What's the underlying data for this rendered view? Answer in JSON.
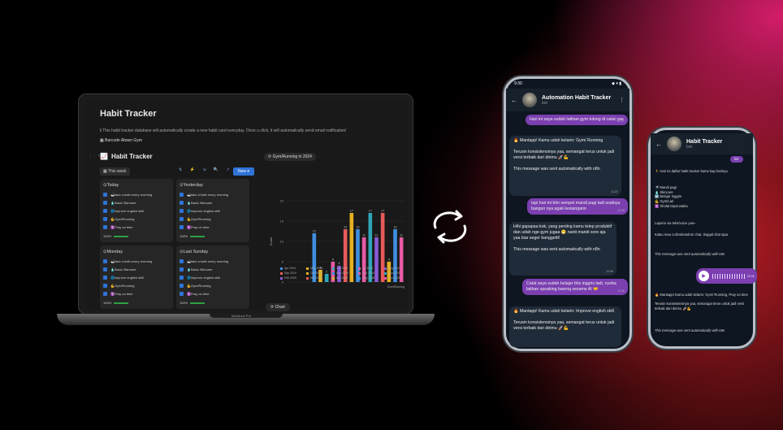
{
  "notion": {
    "title": "Habit Tracker",
    "description": "ℹ This habit tracker database will automatically create a new habit card everyday. Once u click, it will automatically send email notification!",
    "link": "Barcode Absen Gym",
    "db_title": "Habit Tracker",
    "view_tab": "This week",
    "new_button": "New",
    "chart_tab": "Gym/Running in 2024",
    "chart_button": "Chart",
    "laptop_model": "MacBook Pro",
    "cards": [
      {
        "title": "Today",
        "progress": "100%",
        "items": [
          "take a bath every morning",
          "Basic Skincare",
          "improve english skill",
          "Gym/Running",
          "Pray on time"
        ]
      },
      {
        "title": "Yesterday",
        "progress": "100%",
        "items": [
          "take a bath every morning",
          "Basic Skincare",
          "improve english skill",
          "Gym/Running",
          "Pray on time"
        ]
      },
      {
        "title": "Monday",
        "progress": "100%",
        "items": [
          "take a bath every morning",
          "Basic Skincare",
          "improve english skill",
          "Gym/Running",
          "Pray on time"
        ]
      },
      {
        "title": "Last Sunday",
        "progress": "100%",
        "items": [
          "take a bath every morning",
          "Basic Skincare",
          "improve english skill",
          "Gym/Running",
          "Pray on time"
        ]
      }
    ]
  },
  "chart_data": {
    "type": "bar",
    "title": "Gym/Running in 2024",
    "ylabel": "Count",
    "xlabel": "Gym/Running",
    "ylim": [
      0,
      20
    ],
    "yticks": [
      0,
      5,
      10,
      15,
      20
    ],
    "categories": [
      "Apr 2024",
      "May 2024",
      "Jun 2024",
      "Jul 2024",
      "Aug 2024",
      "Sep 2024",
      "Oct 2024",
      "Nov 2024",
      "Dec 2024",
      "Jan 2025",
      "Feb 2025",
      "Mar 2025",
      "Apr 2025",
      "May 2025",
      "Jun 2025"
    ],
    "values": [
      12,
      3,
      2,
      5,
      4,
      13,
      17,
      13,
      11,
      17,
      11,
      17,
      5,
      13,
      11
    ],
    "data_labels": [
      "12",
      "3",
      "2",
      "5",
      "4",
      "13",
      "17",
      "13",
      "11",
      "17",
      "11",
      "17",
      "5",
      "13",
      "11"
    ],
    "colors": [
      "#3f8fe0",
      "#e6b022",
      "#2fa6b8",
      "#e85aa5",
      "#8a5ad6",
      "#e85a5a",
      "#e6b022",
      "#3f8fe0",
      "#e85aa5",
      "#2fa6b8",
      "#8a5ad6",
      "#e85a5a",
      "#e6b022",
      "#3f8fe0",
      "#e85aa5"
    ]
  },
  "phone1": {
    "time": "9:30",
    "bot_name": "Automation Habit Tracker",
    "bot_sub": "bot",
    "messages": [
      {
        "dir": "out",
        "text": "Hari ini saya sudah latihan gym tolong di catat yaa",
        "time": "11:27"
      },
      {
        "dir": "in",
        "text": "🔥 Mantapp! Kamu udah kelarin: Gym/ Running\n\nTerusin konsistensinya yaa, semangat terus untuk jadi versi terbaik dari dirimu 🚀💪\n\nThis message was sent automatically with n8n",
        "time": "11:27"
      },
      {
        "dir": "out",
        "text": "tapi hari ini blm sempet mandi pagi tadi soalnya bangun nya agak kesiangann",
        "time": "11:29"
      },
      {
        "dir": "in",
        "text": "Hihi gapapaa kok, yang penting kamu tetep produktif dan udah nge-gym jugaa 😁 nanti mandi sore aja yaa biar seger banggettt!\n\nThis message was sent automatically with n8n",
        "time": "11:29"
      },
      {
        "dir": "out",
        "text": "Catat saya sudah belajar bhs inggris tadi, nyoba latihan speaking bareng sesame AI 🤝",
        "time": "11:30"
      },
      {
        "dir": "in",
        "text": "🔥 Mantapp! Kamu udah kelarin: Improve english skill\n\nTerusin konsistensinya yaa, semangat terus untuk jadi versi terbaik dari dirimu 🚀💪",
        "time": ""
      }
    ]
  },
  "phone2": {
    "bot_name": "Habit Tracker",
    "bot_sub": "bot",
    "messages": {
      "top_out": "list",
      "list_intro": "🏃 Hari ini daftar habit tracker kamu tiap harinya",
      "list_items": "🚿 Mandi pagi\n🧴 Skincare\n🔤 Belajar Inggris\n💪 Gym/Lari\n🛐 Sholat tepat waktu",
      "reply_hint": "Laporin via teks/voice yaa~",
      "reply_hint2": "Kalau mau curhat/random chat, tinggal chat ajaa",
      "auto_note": "This message was sent automatically with n8n",
      "voice_time": "00:05",
      "final": "🔥 Mantapp! Kamu udah kelarin: Gym/ Running, Pray on time\n\nTerusin konsistensinya yaa, semangat terus untuk jadi versi terbaik dari dirimu 🚀💪",
      "final_note": "This message was sent automatically with n8n"
    }
  }
}
